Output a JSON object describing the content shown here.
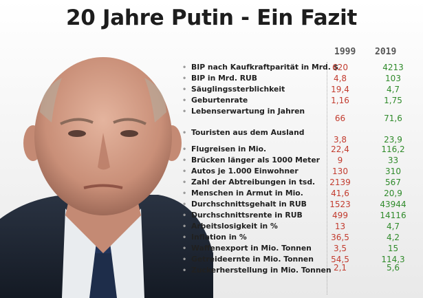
{
  "title": "20 Jahre Putin - Ein Fazit",
  "columns": {
    "y1": "1999",
    "y2": "2019"
  },
  "colors": {
    "value_1999": "#c23b2e",
    "value_2019": "#2f8a2a"
  },
  "rows": [
    {
      "label": "BIP nach Kaufkraftparität in Mrd. $",
      "v1999": "620",
      "v2019": "4213"
    },
    {
      "label": "BIP in Mrd. RUB",
      "v1999": "4,8",
      "v2019": "103"
    },
    {
      "label": "Säuglingssterblichkeit",
      "v1999": "19,4",
      "v2019": "4,7"
    },
    {
      "label": "Geburtenrate",
      "v1999": "1,16",
      "v2019": "1,75"
    },
    {
      "label": "Lebenserwartung in Jahren",
      "v1999": "66",
      "v2019": "71,6"
    },
    {
      "label": "Touristen aus dem Ausland",
      "v1999": "3,8",
      "v2019": "23,9"
    },
    {
      "label": "Flugreisen in Mio.",
      "v1999": "22,4",
      "v2019": "116,2"
    },
    {
      "label": "Brücken länger als 1000 Meter",
      "v1999": "9",
      "v2019": "33"
    },
    {
      "label": "Autos je 1.000 Einwohner",
      "v1999": "130",
      "v2019": "310"
    },
    {
      "label": "Zahl der Abtreibungen in tsd.",
      "v1999": "2139",
      "v2019": "567"
    },
    {
      "label": "Menschen in Armut in Mio.",
      "v1999": "41,6",
      "v2019": "20,9"
    },
    {
      "label": "Durchschnittsgehalt in RUB",
      "v1999": "1523",
      "v2019": "43944"
    },
    {
      "label": "Durchschnittsrente in RUB",
      "v1999": "499",
      "v2019": "14116"
    },
    {
      "label": "Arbeitslosigkeit in %",
      "v1999": "13",
      "v2019": "4,7"
    },
    {
      "label": "Inflation in %",
      "v1999": "36,5",
      "v2019": "4,2"
    },
    {
      "label": "Waffenexport in Mio. Tonnen",
      "v1999": "3,5",
      "v2019": "15"
    },
    {
      "label": "Getreideernte in Mio. Tonnen",
      "v1999": "54,5",
      "v2019": "114,3"
    },
    {
      "label": "Zuckerherstellung in Mio. Tonnen",
      "v1999": "2,1",
      "v2019": "5,6"
    }
  ]
}
